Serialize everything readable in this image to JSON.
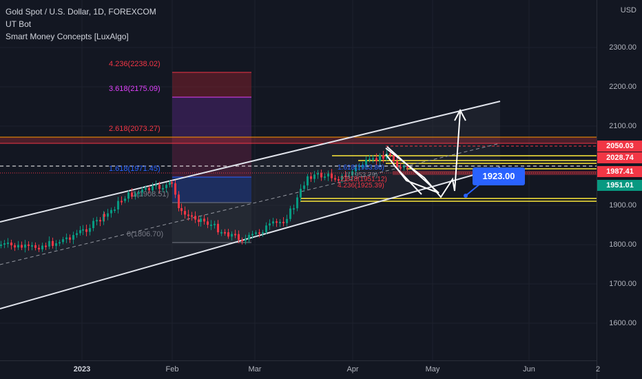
{
  "legend": {
    "symbol": "Gold Spot / U.S. Dollar, 1D, FOREXCOM",
    "indicator1": "UT Bot",
    "indicator2": "Smart Money Concepts [LuxAlgo]"
  },
  "price_axis": {
    "currency": "USD",
    "ticks": [
      "2300.00",
      "2200.00",
      "2100.00",
      "2000.00",
      "1900.00",
      "1800.00",
      "1700.00",
      "1600.00"
    ],
    "tags": [
      {
        "label": "2050.03",
        "color": "#f23645"
      },
      {
        "label": "2028.74",
        "color": "#f23645"
      },
      {
        "label": "1987.41",
        "color": "#f23645"
      },
      {
        "label": "1951.01",
        "color": "#089981"
      }
    ]
  },
  "time_axis": {
    "labels": [
      "2023",
      "Feb",
      "Mar",
      "Apr",
      "May",
      "Jun",
      "2"
    ]
  },
  "fib_levels": [
    {
      "label": "4.236(2238.02)",
      "color": "#f23645"
    },
    {
      "label": "3.618(2175.09)",
      "color": "#e040fb"
    },
    {
      "label": "2.618(2073.27)",
      "color": "#f23645"
    },
    {
      "label": "1.618(1971.45)",
      "color": "#2962ff"
    },
    {
      "label": "1(1908.51)",
      "color": "#787b86"
    },
    {
      "label": "0(1806.70)",
      "color": "#787b86"
    }
  ],
  "small_fib_labels": [
    "1.618(1953.86)",
    "1(1953.79)",
    "2.618(1951.12)",
    "4.236(1925.39)"
  ],
  "callout": {
    "label": "1923.00"
  },
  "colors": {
    "up": "#089981",
    "down": "#f23645",
    "background": "#131722"
  }
}
